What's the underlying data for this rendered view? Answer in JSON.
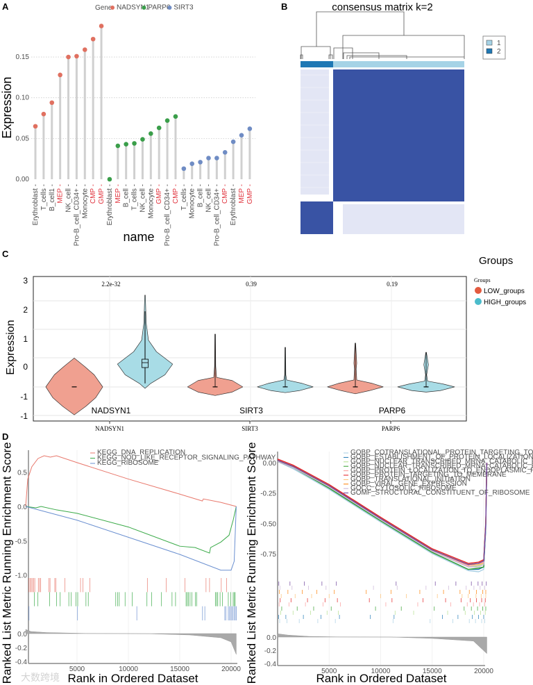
{
  "panel_labels": {
    "a": "A",
    "b": "B",
    "c": "C",
    "d": "D"
  },
  "watermark": "大数跨境",
  "chart_data": [
    {
      "type": "scatter",
      "subtype": "lollipop",
      "legend_title": "Gene",
      "xlabel": "name",
      "ylabel": "Expression",
      "ylim": [
        0,
        0.19
      ],
      "yticks": [
        0,
        0.05,
        0.1,
        0.15
      ],
      "ytick_labels": [
        "0.00",
        "0.05",
        "0.10",
        "0.15"
      ],
      "grid": true,
      "highlight_labels": [
        "MEP",
        "CMP",
        "GMP"
      ],
      "highlight_color": "#E0303A",
      "series": [
        {
          "name": "NADSYN1",
          "color": "#E07060",
          "categories": [
            "Erythroblast",
            "T_cells",
            "B_cell1",
            "MEP",
            "NK_cell",
            "Pro-B_cell_CD34+",
            "Monocyte",
            "CMP",
            "GMP"
          ],
          "values": [
            0.065,
            0.08,
            0.094,
            0.128,
            0.15,
            0.151,
            0.159,
            0.172,
            0.188
          ]
        },
        {
          "name": "PARP6",
          "color": "#3A9E4A",
          "categories": [
            "Erythroblast",
            "MEP",
            "B_cell",
            "T_cells",
            "NK_cell",
            "Monocyte",
            "GMP",
            "Pro-B_cell_CD34+",
            "CMP"
          ],
          "values": [
            0.0,
            0.041,
            0.043,
            0.044,
            0.049,
            0.056,
            0.063,
            0.072,
            0.077
          ]
        },
        {
          "name": "SIRT3",
          "color": "#6F8CC4",
          "categories": [
            "T_cells",
            "Monocyte",
            "B_cell",
            "NK_cell",
            "Pro-B_cell_CD34+",
            "CMP",
            "Erythroblast",
            "MEP",
            "GMP"
          ],
          "values": [
            0.013,
            0.019,
            0.021,
            0.026,
            0.026,
            0.033,
            0.046,
            0.054,
            0.062
          ]
        }
      ]
    },
    {
      "type": "heatmap",
      "title": "consensus matrix k=2",
      "legend": [
        {
          "label": "1",
          "color": "#A6D3E6"
        },
        {
          "label": "2",
          "color": "#1F78B4"
        }
      ],
      "cluster_fraction": [
        0.2,
        0.8
      ],
      "high_color": "#3953A4",
      "low_color": "#E3E6F5"
    },
    {
      "type": "violin",
      "ylabel": "Expression",
      "ytick_labels": [
        "3",
        "2",
        "1",
        "0",
        "-1",
        "-1"
      ],
      "legend_header": "Groups",
      "legend_title": "Groups",
      "groups": [
        {
          "name": "LOW_groups",
          "color": "#F0A090",
          "dot": "#E35A3F"
        },
        {
          "name": "HIGH_groups",
          "color": "#A8DCE6",
          "dot": "#4BBCCB"
        }
      ],
      "genes": [
        "NADSYN1",
        "SIRT3",
        "PARP6"
      ],
      "pvalues": [
        "2.2e-32",
        "0.39",
        "0.19"
      ],
      "violins": [
        {
          "gene": "NADSYN1",
          "group": "LOW_groups",
          "median": -0.72,
          "density": [
            [
              0.28,
              0
            ],
            [
              0.0,
              0.35
            ],
            [
              -0.3,
              0.7
            ],
            [
              -0.72,
              1
            ],
            [
              -1.1,
              0.75
            ],
            [
              -1.4,
              0.4
            ],
            [
              -1.69,
              0
            ]
          ]
        },
        {
          "gene": "NADSYN1",
          "group": "HIGH_groups",
          "median": 0.12,
          "box": [
            -0.05,
            0.24
          ],
          "whisker": [
            -0.6,
            1.9
          ],
          "density": [
            [
              2.46,
              0.01
            ],
            [
              1.5,
              0.04
            ],
            [
              0.9,
              0.12
            ],
            [
              0.5,
              0.4
            ],
            [
              0.07,
              0.97
            ],
            [
              -0.3,
              0.7
            ],
            [
              -0.6,
              0.2
            ],
            [
              -0.77,
              0
            ]
          ]
        },
        {
          "gene": "SIRT3",
          "group": "LOW_groups",
          "median": -0.72,
          "density": [
            [
              1.11,
              0.01
            ],
            [
              0.0,
              0.02
            ],
            [
              -0.39,
              0.05
            ],
            [
              -0.5,
              0.6
            ],
            [
              -0.72,
              0.97
            ],
            [
              -0.9,
              0.6
            ],
            [
              -1.02,
              0
            ]
          ]
        },
        {
          "gene": "SIRT3",
          "group": "HIGH_groups",
          "median": -0.72,
          "density": [
            [
              0.65,
              0.01
            ],
            [
              -0.3,
              0.02
            ],
            [
              -0.48,
              0.05
            ],
            [
              -0.6,
              0.6
            ],
            [
              -0.72,
              0.98
            ],
            [
              -0.85,
              0.5
            ],
            [
              -0.92,
              0
            ]
          ]
        },
        {
          "gene": "PARP6",
          "group": "LOW_groups",
          "median": -0.72,
          "density": [
            [
              0.8,
              0.01
            ],
            [
              0.1,
              0.05
            ],
            [
              -0.1,
              0.03
            ],
            [
              -0.48,
              0.05
            ],
            [
              -0.6,
              0.6
            ],
            [
              -0.72,
              0.98
            ],
            [
              -0.85,
              0.5
            ],
            [
              -0.96,
              0
            ]
          ]
        },
        {
          "gene": "PARP6",
          "group": "HIGH_groups",
          "median": -0.72,
          "density": [
            [
              0.48,
              0.01
            ],
            [
              0.05,
              0.08
            ],
            [
              -0.3,
              0.02
            ],
            [
              -0.52,
              0.05
            ],
            [
              -0.62,
              0.6
            ],
            [
              -0.72,
              1
            ],
            [
              -0.85,
              0.5
            ],
            [
              -0.9,
              0
            ]
          ]
        }
      ]
    },
    {
      "type": "line",
      "ylabel": "Running Enrichment Score",
      "ylabel2": "Ranked List Metric",
      "xlabel": "Rank in Ordered Dataset",
      "yticks": [
        "0.5",
        "0.0",
        "-0.5",
        "-1.0"
      ],
      "ytick_values": [
        0.5,
        0,
        -0.5,
        -1.0
      ],
      "metric_ticks": [
        "0.0",
        "-0.2",
        "-0.4"
      ],
      "metric_values": [
        0,
        -0.2,
        -0.4
      ],
      "xticks": [
        5000,
        10000,
        15000,
        20000
      ],
      "series": [
        {
          "name": "KEGG_DNA_REPLICATION",
          "color": "#E8776B",
          "points": [
            [
              0,
              0
            ],
            [
              200,
              0.4
            ],
            [
              600,
              0.58
            ],
            [
              1200,
              0.7
            ],
            [
              1800,
              0.74
            ],
            [
              2400,
              0.72
            ],
            [
              3000,
              0.74
            ],
            [
              5000,
              0.64
            ],
            [
              10000,
              0.4
            ],
            [
              15000,
              0.18
            ],
            [
              17200,
              0.08
            ],
            [
              17300,
              0.11
            ],
            [
              19000,
              0.06
            ],
            [
              20500,
              0
            ]
          ],
          "hits": [
            320,
            434,
            548,
            662,
            776,
            890,
            1233,
            1347,
            1461,
            2260,
            2374,
            2831,
            2945,
            3813,
            5342,
            5571,
            6256,
            11849,
            13676,
            15502,
            17557,
            17900,
            19041,
            19566
          ]
        },
        {
          "name": "KEGG_NOD_LIKE_RECEPTOR_SIGNALING_PATHWAY",
          "color": "#3AAA48",
          "points": [
            [
              0,
              0
            ],
            [
              1000,
              -0.02
            ],
            [
              1500,
              0
            ],
            [
              3000,
              -0.05
            ],
            [
              5000,
              -0.1
            ],
            [
              10000,
              -0.3
            ],
            [
              15000,
              -0.58
            ],
            [
              16500,
              -0.6
            ],
            [
              17900,
              -0.68
            ],
            [
              18000,
              -0.6
            ],
            [
              19000,
              -0.52
            ],
            [
              19800,
              -0.42
            ],
            [
              20200,
              -0.2
            ],
            [
              20500,
              0
            ]
          ],
          "hits": [
            845,
            1187,
            2329,
            3014,
            3356,
            4201,
            4429,
            4886,
            5068,
            5868,
            6096,
            8767,
            8950,
            9110,
            9680,
            10365,
            11804,
            12260,
            13219,
            14247,
            14589,
            15616,
            15731,
            15845,
            16005,
            16187,
            16530,
            16644,
            18470,
            18584,
            18699,
            18927,
            19155,
            19726,
            19954,
            20200,
            20300,
            20400
          ]
        },
        {
          "name": "KEGG_RIBOSOME",
          "color": "#6A8FD0",
          "points": [
            [
              0,
              0
            ],
            [
              5000,
              -0.2
            ],
            [
              10000,
              -0.45
            ],
            [
              15000,
              -0.7
            ],
            [
              19000,
              -0.93
            ],
            [
              20000,
              -0.93
            ],
            [
              20300,
              -0.8
            ],
            [
              20500,
              0
            ]
          ],
          "hits": [
            320,
            5046,
            10822,
            17215,
            17443,
            19384,
            19498,
            19726,
            19840,
            19954,
            20068,
            20183,
            20297,
            20411,
            20500
          ]
        }
      ],
      "metric": [
        [
          0,
          0.06
        ],
        [
          500,
          0.03
        ],
        [
          2000,
          0.015
        ],
        [
          6000,
          0.002
        ],
        [
          10000,
          0
        ],
        [
          12000,
          -0.002
        ],
        [
          16000,
          -0.02
        ],
        [
          19000,
          -0.06
        ],
        [
          20000,
          -0.12
        ],
        [
          20500,
          -0.3
        ]
      ]
    },
    {
      "type": "line",
      "ylabel": "Running Enrichment Score",
      "ylabel2": "Ranked List Metric",
      "xlabel": "Rank in Ordered Dataset",
      "yticks": [
        "0.00",
        "-0.25",
        "-0.50",
        "-0.75"
      ],
      "ytick_values": [
        0,
        -0.25,
        -0.5,
        -0.75
      ],
      "metric_ticks": [
        "0.0",
        "-0.2",
        "-0.4"
      ],
      "metric_values": [
        0,
        -0.2,
        -0.4
      ],
      "xticks": [
        5000,
        10000,
        15000,
        20000
      ],
      "x": [
        0,
        1500,
        5000,
        10000,
        15000,
        18500,
        19500,
        20000,
        20200,
        20300
      ],
      "series": [
        {
          "name": "GOBP_COTRANSLATIONAL_PROTEIN_TARGETING_TO_MEMBRANE",
          "color": "#A6CEE3",
          "y": [
            0.01,
            -0.05,
            -0.22,
            -0.49,
            -0.75,
            -0.89,
            -0.9,
            -0.88,
            -0.55,
            0
          ],
          "hits": [
            200,
            900,
            2100,
            3900,
            5600,
            11200,
            14800,
            17000,
            18600,
            19200,
            19800,
            20100
          ]
        },
        {
          "name": "GOBP_ESTABLISHMENT_OF_PROTEIN_LOCALIZATION_TO_ENDOPLASMIC_RETICULUM",
          "color": "#1F78B4",
          "y": [
            0.01,
            -0.04,
            -0.21,
            -0.48,
            -0.74,
            -0.88,
            -0.88,
            -0.86,
            -0.55,
            0
          ],
          "hits": [
            100,
            800,
            2500,
            4200,
            6000,
            9000,
            11300,
            16000,
            17500,
            18900,
            19500,
            20000
          ]
        },
        {
          "name": "GOBP_NUCLEAR_TRANSCRIBED_MRNA_CATABOLIC_PROCESS",
          "color": "#B2DF8A",
          "y": [
            0.02,
            -0.03,
            -0.2,
            -0.47,
            -0.73,
            -0.86,
            -0.85,
            -0.83,
            -0.5,
            0
          ],
          "hits": [
            300,
            1500,
            3200,
            4800,
            5900,
            11400,
            13200,
            16500,
            18200,
            19100,
            19700,
            20150
          ]
        },
        {
          "name": "GOBP_NUCLEAR_TRANSCRIBED_MRNA_CATABOLIC_PROCESS_NONSENSE_MEDIATED_DECAY",
          "color": "#33A02C",
          "y": [
            0.01,
            -0.04,
            -0.21,
            -0.48,
            -0.74,
            -0.88,
            -0.87,
            -0.86,
            -0.5,
            0
          ],
          "hits": [
            400,
            1900,
            3500,
            5200,
            9500,
            12000,
            15200,
            18100,
            18800,
            19400,
            19900,
            20200
          ]
        },
        {
          "name": "GOBP_PROTEIN_LOCALIZATION_TO_ENDOPLASMIC_RETICULUM",
          "color": "#FB9A99",
          "y": [
            0.02,
            -0.03,
            -0.19,
            -0.46,
            -0.72,
            -0.85,
            -0.84,
            -0.82,
            -0.5,
            0
          ],
          "hits": [
            150,
            1100,
            2700,
            4400,
            6100,
            10500,
            13600,
            16800,
            18400,
            19000,
            19600,
            20100
          ]
        },
        {
          "name": "GOBP_PROTEIN_TARGETING_TO_MEMBRANE",
          "color": "#E31A1C",
          "y": [
            0.03,
            -0.02,
            -0.18,
            -0.45,
            -0.71,
            -0.83,
            -0.82,
            -0.8,
            -0.48,
            0
          ],
          "hits": [
            250,
            1300,
            2900,
            4600,
            5800,
            8900,
            11100,
            14100,
            16300,
            17800,
            18700,
            19300,
            19800,
            20150
          ]
        },
        {
          "name": "GOBP_TRANSLATIONAL_INITIATION",
          "color": "#FDBF6F",
          "y": [
            0.02,
            -0.03,
            -0.19,
            -0.46,
            -0.72,
            -0.84,
            -0.84,
            -0.83,
            -0.5,
            0
          ],
          "hits": [
            350,
            1700,
            3300,
            5000,
            10000,
            12500,
            15500,
            17900,
            18500,
            19250,
            19750,
            20200
          ]
        },
        {
          "name": "GOBP_VIRAL_GENE_EXPRESSION",
          "color": "#FF7F00",
          "y": [
            0.02,
            -0.03,
            -0.19,
            -0.46,
            -0.72,
            -0.84,
            -0.83,
            -0.81,
            -0.5,
            0
          ],
          "hits": [
            180,
            1000,
            2400,
            3800,
            5500,
            8600,
            11000,
            13800,
            16100,
            17700,
            18600,
            19300,
            19900,
            20200
          ]
        },
        {
          "name": "GOCC_CYTOSOLIC_RIBOSOME",
          "color": "#CAB2D6",
          "y": [
            0.01,
            -0.04,
            -0.2,
            -0.47,
            -0.73,
            -0.86,
            -0.86,
            -0.84,
            -0.52,
            0
          ],
          "hits": [
            220,
            1400,
            3000,
            4700,
            9300,
            11600,
            14400,
            16600,
            18300,
            19050,
            19650,
            20100
          ]
        },
        {
          "name": "GOMF_STRUCTURAL_CONSTITUENT_OF_RIBOSOME",
          "color": "#6A3D9A",
          "y": [
            0.02,
            -0.03,
            -0.19,
            -0.46,
            -0.72,
            -0.84,
            -0.83,
            -0.81,
            -0.5,
            0
          ],
          "hits": [
            120,
            1200,
            2600,
            4300,
            5700,
            11500,
            15300,
            17300,
            18800,
            19450,
            19850,
            20250
          ]
        }
      ],
      "metric": [
        [
          0,
          0.05
        ],
        [
          1000,
          0.03
        ],
        [
          3000,
          0.01
        ],
        [
          6000,
          0.002
        ],
        [
          11000,
          0
        ],
        [
          15000,
          -0.02
        ],
        [
          19000,
          -0.06
        ],
        [
          20300,
          -0.25
        ]
      ]
    }
  ]
}
